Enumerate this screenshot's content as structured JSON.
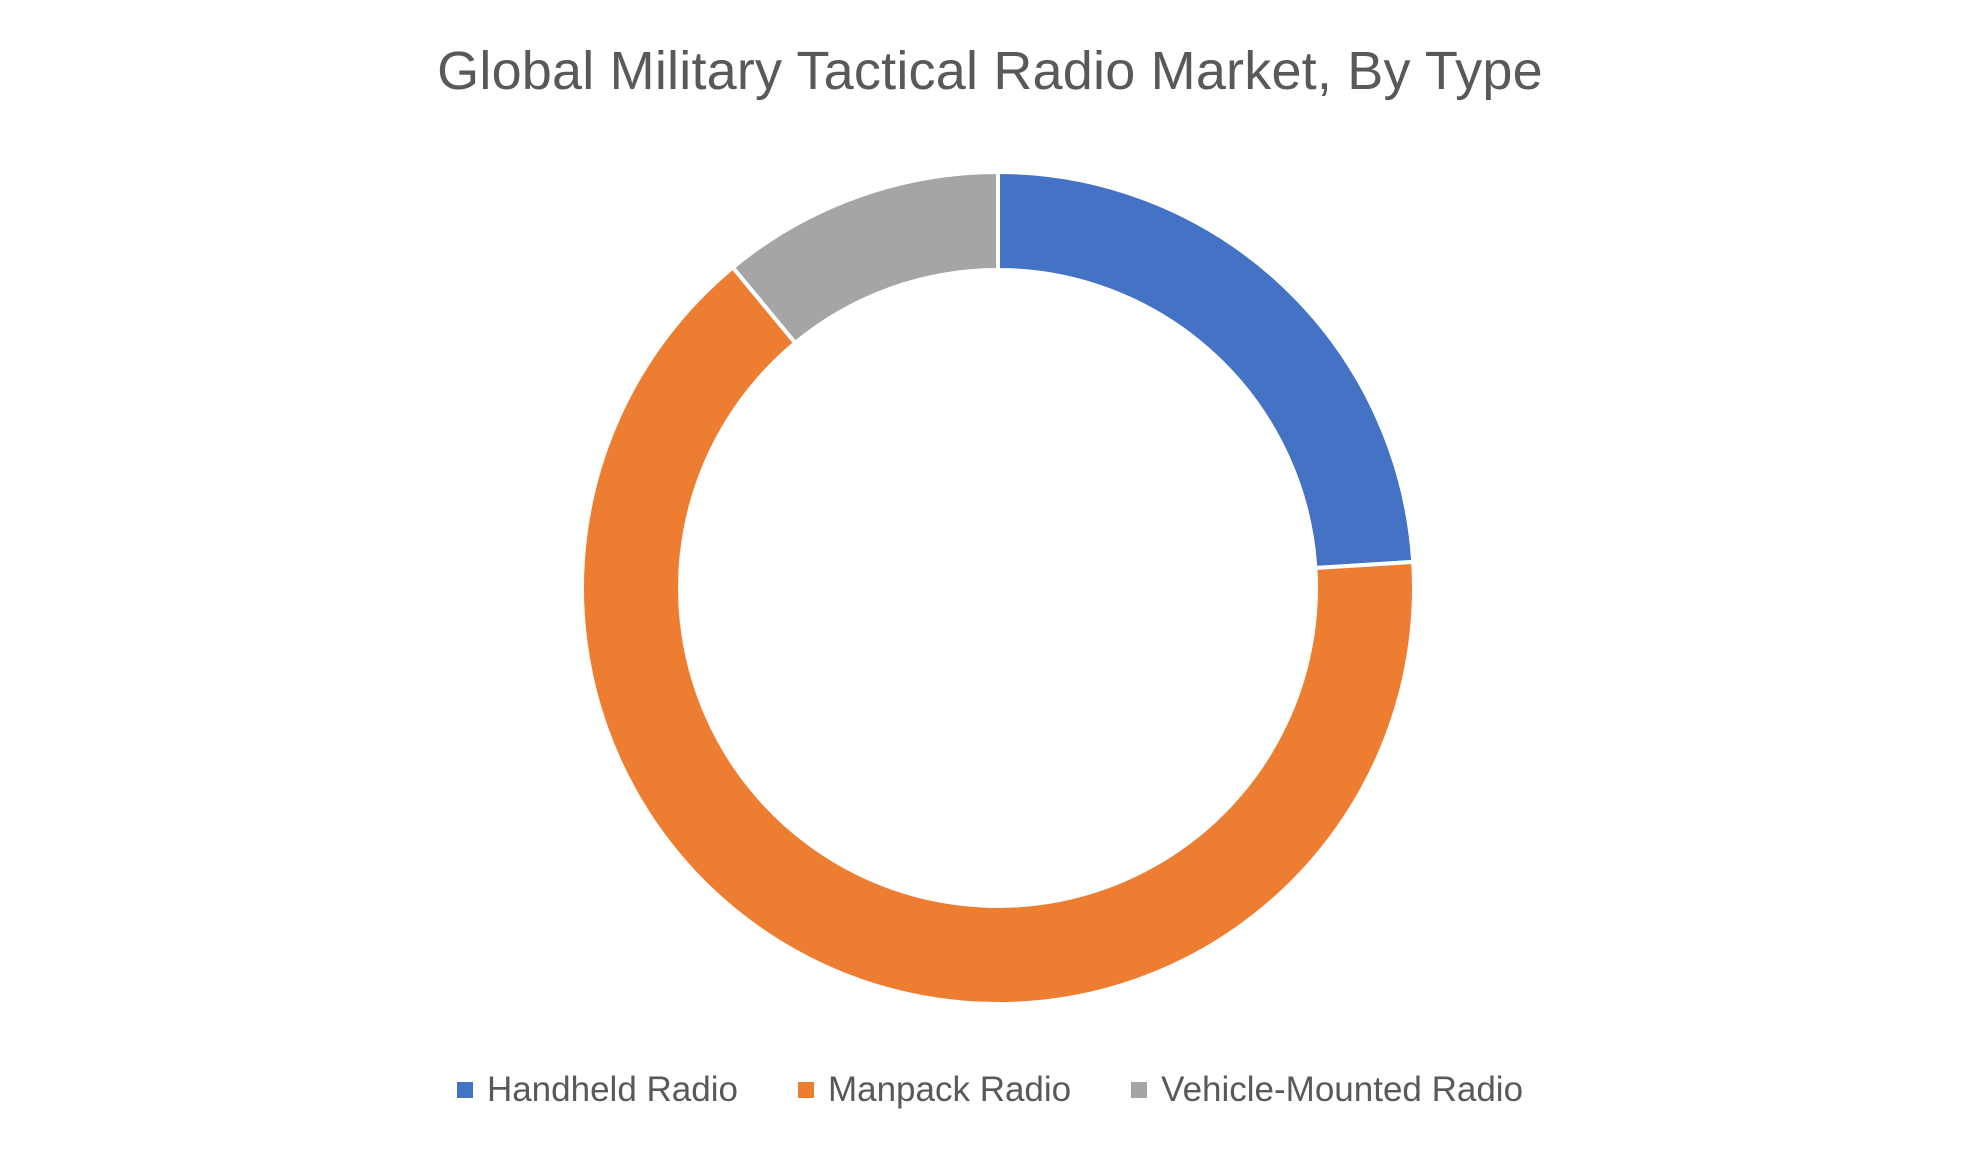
{
  "chart_data": {
    "type": "pie",
    "subtype": "donut",
    "title": "Global Military Tactical Radio Market, By Type",
    "categories": [
      "Handheld Radio",
      "Manpack Radio",
      "Vehicle-Mounted Radio"
    ],
    "values": [
      24,
      65,
      11
    ],
    "unit": "%",
    "colors": [
      "#4472C4",
      "#ED7D31",
      "#A5A5A5"
    ],
    "legend_position": "bottom",
    "start_angle_deg": 0,
    "direction": "clockwise"
  }
}
